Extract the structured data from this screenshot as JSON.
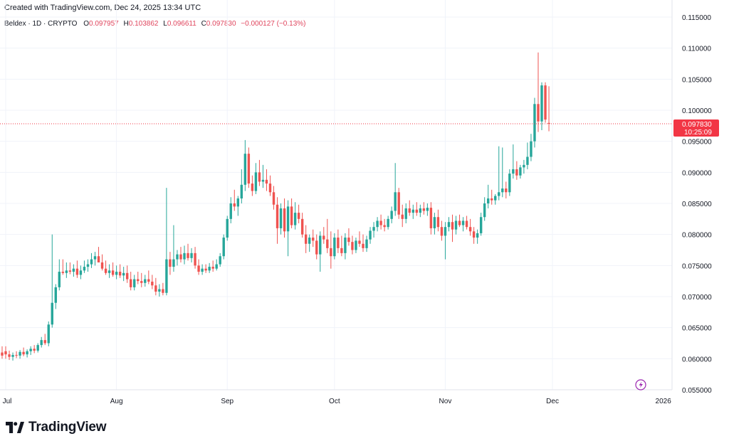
{
  "header": {
    "created_text": "Created with TradingView.com, Dec 24, 2025 13:34 UTC"
  },
  "symbol": {
    "title": "Beldex · 1D · CRYPTO",
    "open_label": "O",
    "open": "0.097957",
    "high_label": "H",
    "high": "0.103862",
    "low_label": "L",
    "low": "0.096611",
    "close_label": "C",
    "close": "0.097830",
    "change": "−0.000127 (−0.13%)"
  },
  "price_tag": {
    "price": "0.097830",
    "countdown": "10:25:09",
    "color": "#f23645"
  },
  "footer": {
    "brand": "TradingView",
    "logo_icon": "tradingview-logo-icon"
  },
  "colors": {
    "up": "#26a69a",
    "down": "#ef5350",
    "grid": "#f0f3fa",
    "text": "#131722"
  },
  "chart_data": {
    "type": "candlestick",
    "ylim": [
      0.055,
      0.115
    ],
    "y_ticks": [
      "0.115000",
      "0.110000",
      "0.105000",
      "0.100000",
      "0.095000",
      "0.090000",
      "0.085000",
      "0.080000",
      "0.075000",
      "0.070000",
      "0.065000",
      "0.060000",
      "0.055000"
    ],
    "x_ticks": [
      {
        "label": "Jul",
        "day": 0
      },
      {
        "label": "Aug",
        "day": 31
      },
      {
        "label": "Sep",
        "day": 62
      },
      {
        "label": "Oct",
        "day": 92
      },
      {
        "label": "Nov",
        "day": 123
      },
      {
        "label": "Dec",
        "day": 153
      },
      {
        "label": "2026",
        "day": 184
      }
    ],
    "candles": [
      {
        "day": -2,
        "o": 0.0625,
        "h": 0.063,
        "l": 0.0605,
        "c": 0.061
      },
      {
        "day": -1,
        "o": 0.061,
        "h": 0.062,
        "l": 0.06,
        "c": 0.0605
      },
      {
        "day": 0,
        "o": 0.0612,
        "h": 0.062,
        "l": 0.06,
        "c": 0.0607
      },
      {
        "day": 1,
        "o": 0.0607,
        "h": 0.0613,
        "l": 0.0598,
        "c": 0.0603
      },
      {
        "day": 2,
        "o": 0.0603,
        "h": 0.061,
        "l": 0.0597,
        "c": 0.0606
      },
      {
        "day": 3,
        "o": 0.0606,
        "h": 0.0612,
        "l": 0.0601,
        "c": 0.0605
      },
      {
        "day": 4,
        "o": 0.0605,
        "h": 0.0614,
        "l": 0.06,
        "c": 0.0611
      },
      {
        "day": 5,
        "o": 0.0611,
        "h": 0.0618,
        "l": 0.0604,
        "c": 0.0607
      },
      {
        "day": 6,
        "o": 0.0607,
        "h": 0.0615,
        "l": 0.0602,
        "c": 0.0612
      },
      {
        "day": 7,
        "o": 0.0612,
        "h": 0.062,
        "l": 0.0606,
        "c": 0.0616
      },
      {
        "day": 8,
        "o": 0.0616,
        "h": 0.0622,
        "l": 0.0609,
        "c": 0.0613
      },
      {
        "day": 9,
        "o": 0.0613,
        "h": 0.0625,
        "l": 0.061,
        "c": 0.0622
      },
      {
        "day": 10,
        "o": 0.0622,
        "h": 0.0635,
        "l": 0.0618,
        "c": 0.063
      },
      {
        "day": 11,
        "o": 0.063,
        "h": 0.064,
        "l": 0.0622,
        "c": 0.0625
      },
      {
        "day": 12,
        "o": 0.0625,
        "h": 0.066,
        "l": 0.062,
        "c": 0.0655
      },
      {
        "day": 13,
        "o": 0.0655,
        "h": 0.08,
        "l": 0.065,
        "c": 0.069
      },
      {
        "day": 14,
        "o": 0.069,
        "h": 0.072,
        "l": 0.068,
        "c": 0.0715
      },
      {
        "day": 15,
        "o": 0.0715,
        "h": 0.076,
        "l": 0.071,
        "c": 0.074
      },
      {
        "day": 16,
        "o": 0.074,
        "h": 0.076,
        "l": 0.0735,
        "c": 0.0738
      },
      {
        "day": 17,
        "o": 0.0738,
        "h": 0.0755,
        "l": 0.073,
        "c": 0.0742
      },
      {
        "day": 18,
        "o": 0.0742,
        "h": 0.0755,
        "l": 0.0736,
        "c": 0.074
      },
      {
        "day": 19,
        "o": 0.074,
        "h": 0.0752,
        "l": 0.0732,
        "c": 0.0745
      },
      {
        "day": 20,
        "o": 0.0745,
        "h": 0.0758,
        "l": 0.073,
        "c": 0.0735
      },
      {
        "day": 21,
        "o": 0.0735,
        "h": 0.075,
        "l": 0.0728,
        "c": 0.0742
      },
      {
        "day": 22,
        "o": 0.0742,
        "h": 0.0758,
        "l": 0.0738,
        "c": 0.0748
      },
      {
        "day": 23,
        "o": 0.0748,
        "h": 0.076,
        "l": 0.074,
        "c": 0.0752
      },
      {
        "day": 24,
        "o": 0.0752,
        "h": 0.077,
        "l": 0.0746,
        "c": 0.076
      },
      {
        "day": 25,
        "o": 0.076,
        "h": 0.0772,
        "l": 0.075,
        "c": 0.0765
      },
      {
        "day": 26,
        "o": 0.0765,
        "h": 0.078,
        "l": 0.0758,
        "c": 0.0755
      },
      {
        "day": 27,
        "o": 0.0755,
        "h": 0.0768,
        "l": 0.0742,
        "c": 0.0745
      },
      {
        "day": 28,
        "o": 0.0745,
        "h": 0.0758,
        "l": 0.0735,
        "c": 0.0738
      },
      {
        "day": 29,
        "o": 0.0738,
        "h": 0.0752,
        "l": 0.073,
        "c": 0.0742
      },
      {
        "day": 30,
        "o": 0.0742,
        "h": 0.0755,
        "l": 0.0732,
        "c": 0.0735
      },
      {
        "day": 31,
        "o": 0.0735,
        "h": 0.075,
        "l": 0.0728,
        "c": 0.074
      },
      {
        "day": 32,
        "o": 0.074,
        "h": 0.0752,
        "l": 0.073,
        "c": 0.0734
      },
      {
        "day": 33,
        "o": 0.0734,
        "h": 0.0748,
        "l": 0.0725,
        "c": 0.0738
      },
      {
        "day": 34,
        "o": 0.0738,
        "h": 0.075,
        "l": 0.0722,
        "c": 0.0728
      },
      {
        "day": 35,
        "o": 0.0728,
        "h": 0.074,
        "l": 0.071,
        "c": 0.0715
      },
      {
        "day": 36,
        "o": 0.0715,
        "h": 0.0735,
        "l": 0.071,
        "c": 0.0728
      },
      {
        "day": 37,
        "o": 0.0728,
        "h": 0.074,
        "l": 0.072,
        "c": 0.0725
      },
      {
        "day": 38,
        "o": 0.0725,
        "h": 0.0738,
        "l": 0.0715,
        "c": 0.0722
      },
      {
        "day": 39,
        "o": 0.0722,
        "h": 0.0735,
        "l": 0.0716,
        "c": 0.0728
      },
      {
        "day": 40,
        "o": 0.0728,
        "h": 0.0742,
        "l": 0.072,
        "c": 0.0724
      },
      {
        "day": 41,
        "o": 0.0724,
        "h": 0.0735,
        "l": 0.0712,
        "c": 0.0718
      },
      {
        "day": 42,
        "o": 0.0718,
        "h": 0.073,
        "l": 0.0702,
        "c": 0.0708
      },
      {
        "day": 43,
        "o": 0.0708,
        "h": 0.072,
        "l": 0.07,
        "c": 0.0712
      },
      {
        "day": 44,
        "o": 0.0712,
        "h": 0.0722,
        "l": 0.0702,
        "c": 0.0706
      },
      {
        "day": 45,
        "o": 0.0706,
        "h": 0.0875,
        "l": 0.0702,
        "c": 0.076
      },
      {
        "day": 46,
        "o": 0.076,
        "h": 0.0772,
        "l": 0.0735,
        "c": 0.0748
      },
      {
        "day": 47,
        "o": 0.0748,
        "h": 0.0815,
        "l": 0.074,
        "c": 0.076
      },
      {
        "day": 48,
        "o": 0.076,
        "h": 0.0775,
        "l": 0.075,
        "c": 0.0768
      },
      {
        "day": 49,
        "o": 0.0768,
        "h": 0.078,
        "l": 0.0755,
        "c": 0.076
      },
      {
        "day": 50,
        "o": 0.076,
        "h": 0.0782,
        "l": 0.0752,
        "c": 0.077
      },
      {
        "day": 51,
        "o": 0.077,
        "h": 0.0785,
        "l": 0.0758,
        "c": 0.0762
      },
      {
        "day": 52,
        "o": 0.0762,
        "h": 0.0778,
        "l": 0.0755,
        "c": 0.077
      },
      {
        "day": 53,
        "o": 0.077,
        "h": 0.078,
        "l": 0.0745,
        "c": 0.075
      },
      {
        "day": 54,
        "o": 0.075,
        "h": 0.076,
        "l": 0.0735,
        "c": 0.074
      },
      {
        "day": 55,
        "o": 0.074,
        "h": 0.0752,
        "l": 0.0735,
        "c": 0.0745
      },
      {
        "day": 56,
        "o": 0.0745,
        "h": 0.0752,
        "l": 0.0738,
        "c": 0.0742
      },
      {
        "day": 57,
        "o": 0.0742,
        "h": 0.0754,
        "l": 0.0738,
        "c": 0.0748
      },
      {
        "day": 58,
        "o": 0.0748,
        "h": 0.0758,
        "l": 0.074,
        "c": 0.0745
      },
      {
        "day": 59,
        "o": 0.0745,
        "h": 0.076,
        "l": 0.0742,
        "c": 0.0752
      },
      {
        "day": 60,
        "o": 0.0752,
        "h": 0.077,
        "l": 0.0748,
        "c": 0.0765
      },
      {
        "day": 61,
        "o": 0.0765,
        "h": 0.08,
        "l": 0.076,
        "c": 0.0795
      },
      {
        "day": 62,
        "o": 0.0795,
        "h": 0.083,
        "l": 0.079,
        "c": 0.0825
      },
      {
        "day": 63,
        "o": 0.0825,
        "h": 0.086,
        "l": 0.0818,
        "c": 0.085
      },
      {
        "day": 64,
        "o": 0.085,
        "h": 0.0872,
        "l": 0.0838,
        "c": 0.0845
      },
      {
        "day": 65,
        "o": 0.0845,
        "h": 0.0862,
        "l": 0.083,
        "c": 0.0858
      },
      {
        "day": 66,
        "o": 0.0858,
        "h": 0.0905,
        "l": 0.085,
        "c": 0.088
      },
      {
        "day": 67,
        "o": 0.088,
        "h": 0.0952,
        "l": 0.087,
        "c": 0.093
      },
      {
        "day": 68,
        "o": 0.093,
        "h": 0.094,
        "l": 0.0875,
        "c": 0.0882
      },
      {
        "day": 69,
        "o": 0.0882,
        "h": 0.0895,
        "l": 0.0862,
        "c": 0.087
      },
      {
        "day": 70,
        "o": 0.087,
        "h": 0.0915,
        "l": 0.0865,
        "c": 0.09
      },
      {
        "day": 71,
        "o": 0.09,
        "h": 0.092,
        "l": 0.0878,
        "c": 0.0885
      },
      {
        "day": 72,
        "o": 0.0885,
        "h": 0.0912,
        "l": 0.0875,
        "c": 0.0888
      },
      {
        "day": 73,
        "o": 0.0888,
        "h": 0.0905,
        "l": 0.087,
        "c": 0.0882
      },
      {
        "day": 74,
        "o": 0.0882,
        "h": 0.0895,
        "l": 0.0862,
        "c": 0.0868
      },
      {
        "day": 75,
        "o": 0.0868,
        "h": 0.0878,
        "l": 0.084,
        "c": 0.0848
      },
      {
        "day": 76,
        "o": 0.0848,
        "h": 0.086,
        "l": 0.0785,
        "c": 0.081
      },
      {
        "day": 77,
        "o": 0.081,
        "h": 0.085,
        "l": 0.08,
        "c": 0.0842
      },
      {
        "day": 78,
        "o": 0.0842,
        "h": 0.0858,
        "l": 0.0795,
        "c": 0.0805
      },
      {
        "day": 79,
        "o": 0.0805,
        "h": 0.0855,
        "l": 0.0765,
        "c": 0.0845
      },
      {
        "day": 80,
        "o": 0.0845,
        "h": 0.0858,
        "l": 0.081,
        "c": 0.0815
      },
      {
        "day": 81,
        "o": 0.0815,
        "h": 0.0852,
        "l": 0.0808,
        "c": 0.0835
      },
      {
        "day": 82,
        "o": 0.0835,
        "h": 0.0848,
        "l": 0.0818,
        "c": 0.0825
      },
      {
        "day": 83,
        "o": 0.0825,
        "h": 0.0835,
        "l": 0.0795,
        "c": 0.08
      },
      {
        "day": 84,
        "o": 0.08,
        "h": 0.0815,
        "l": 0.077,
        "c": 0.0785
      },
      {
        "day": 85,
        "o": 0.0785,
        "h": 0.08,
        "l": 0.0772,
        "c": 0.0795
      },
      {
        "day": 86,
        "o": 0.0795,
        "h": 0.0808,
        "l": 0.078,
        "c": 0.079
      },
      {
        "day": 87,
        "o": 0.079,
        "h": 0.08,
        "l": 0.076,
        "c": 0.0768
      },
      {
        "day": 88,
        "o": 0.0768,
        "h": 0.0805,
        "l": 0.074,
        "c": 0.0798
      },
      {
        "day": 89,
        "o": 0.0798,
        "h": 0.0812,
        "l": 0.0785,
        "c": 0.0792
      },
      {
        "day": 90,
        "o": 0.0792,
        "h": 0.0825,
        "l": 0.077,
        "c": 0.0778
      },
      {
        "day": 91,
        "o": 0.0778,
        "h": 0.0805,
        "l": 0.0745,
        "c": 0.0765
      },
      {
        "day": 92,
        "o": 0.0765,
        "h": 0.0802,
        "l": 0.076,
        "c": 0.0795
      },
      {
        "day": 93,
        "o": 0.0795,
        "h": 0.0808,
        "l": 0.077,
        "c": 0.0778
      },
      {
        "day": 94,
        "o": 0.0778,
        "h": 0.0798,
        "l": 0.0765,
        "c": 0.077
      },
      {
        "day": 95,
        "o": 0.077,
        "h": 0.0802,
        "l": 0.076,
        "c": 0.0795
      },
      {
        "day": 96,
        "o": 0.0795,
        "h": 0.081,
        "l": 0.0782,
        "c": 0.0788
      },
      {
        "day": 97,
        "o": 0.0788,
        "h": 0.0798,
        "l": 0.0768,
        "c": 0.0775
      },
      {
        "day": 98,
        "o": 0.0775,
        "h": 0.0795,
        "l": 0.077,
        "c": 0.079
      },
      {
        "day": 99,
        "o": 0.079,
        "h": 0.0805,
        "l": 0.078,
        "c": 0.0785
      },
      {
        "day": 100,
        "o": 0.0785,
        "h": 0.08,
        "l": 0.0772,
        "c": 0.0778
      },
      {
        "day": 101,
        "o": 0.0778,
        "h": 0.0798,
        "l": 0.0772,
        "c": 0.0792
      },
      {
        "day": 102,
        "o": 0.0792,
        "h": 0.0812,
        "l": 0.0785,
        "c": 0.0806
      },
      {
        "day": 103,
        "o": 0.0806,
        "h": 0.082,
        "l": 0.0795,
        "c": 0.0812
      },
      {
        "day": 104,
        "o": 0.0812,
        "h": 0.0828,
        "l": 0.0805,
        "c": 0.0822
      },
      {
        "day": 105,
        "o": 0.0822,
        "h": 0.0832,
        "l": 0.0808,
        "c": 0.0815
      },
      {
        "day": 106,
        "o": 0.0815,
        "h": 0.0825,
        "l": 0.0805,
        "c": 0.0812
      },
      {
        "day": 107,
        "o": 0.0812,
        "h": 0.083,
        "l": 0.0808,
        "c": 0.0825
      },
      {
        "day": 108,
        "o": 0.0825,
        "h": 0.0845,
        "l": 0.0818,
        "c": 0.0838
      },
      {
        "day": 109,
        "o": 0.0838,
        "h": 0.0915,
        "l": 0.083,
        "c": 0.0868
      },
      {
        "day": 110,
        "o": 0.0868,
        "h": 0.0875,
        "l": 0.0825,
        "c": 0.0832
      },
      {
        "day": 111,
        "o": 0.0832,
        "h": 0.0848,
        "l": 0.0812,
        "c": 0.0825
      },
      {
        "day": 112,
        "o": 0.0825,
        "h": 0.085,
        "l": 0.0818,
        "c": 0.0842
      },
      {
        "day": 113,
        "o": 0.0842,
        "h": 0.0855,
        "l": 0.083,
        "c": 0.0835
      },
      {
        "day": 114,
        "o": 0.0835,
        "h": 0.0848,
        "l": 0.0825,
        "c": 0.084
      },
      {
        "day": 115,
        "o": 0.084,
        "h": 0.0852,
        "l": 0.083,
        "c": 0.0835
      },
      {
        "day": 116,
        "o": 0.0835,
        "h": 0.0848,
        "l": 0.0828,
        "c": 0.0842
      },
      {
        "day": 117,
        "o": 0.0842,
        "h": 0.0852,
        "l": 0.0832,
        "c": 0.0838
      },
      {
        "day": 118,
        "o": 0.0838,
        "h": 0.085,
        "l": 0.083,
        "c": 0.0843
      },
      {
        "day": 119,
        "o": 0.0843,
        "h": 0.0852,
        "l": 0.08,
        "c": 0.081
      },
      {
        "day": 120,
        "o": 0.081,
        "h": 0.0835,
        "l": 0.08,
        "c": 0.0828
      },
      {
        "day": 121,
        "o": 0.0828,
        "h": 0.084,
        "l": 0.0805,
        "c": 0.0812
      },
      {
        "day": 122,
        "o": 0.0812,
        "h": 0.0822,
        "l": 0.079,
        "c": 0.0798
      },
      {
        "day": 123,
        "o": 0.0798,
        "h": 0.082,
        "l": 0.076,
        "c": 0.0812
      },
      {
        "day": 124,
        "o": 0.0812,
        "h": 0.0828,
        "l": 0.0805,
        "c": 0.082
      },
      {
        "day": 125,
        "o": 0.082,
        "h": 0.0832,
        "l": 0.0788,
        "c": 0.0808
      },
      {
        "day": 126,
        "o": 0.0808,
        "h": 0.083,
        "l": 0.08,
        "c": 0.0822
      },
      {
        "day": 127,
        "o": 0.0822,
        "h": 0.0832,
        "l": 0.0812,
        "c": 0.0815
      },
      {
        "day": 128,
        "o": 0.0815,
        "h": 0.0828,
        "l": 0.0805,
        "c": 0.0822
      },
      {
        "day": 129,
        "o": 0.0822,
        "h": 0.083,
        "l": 0.0808,
        "c": 0.0812
      },
      {
        "day": 130,
        "o": 0.0812,
        "h": 0.0825,
        "l": 0.0798,
        "c": 0.0805
      },
      {
        "day": 131,
        "o": 0.0805,
        "h": 0.0812,
        "l": 0.0785,
        "c": 0.0795
      },
      {
        "day": 132,
        "o": 0.0795,
        "h": 0.0808,
        "l": 0.0785,
        "c": 0.0802
      },
      {
        "day": 133,
        "o": 0.0802,
        "h": 0.0835,
        "l": 0.0798,
        "c": 0.0828
      },
      {
        "day": 134,
        "o": 0.0828,
        "h": 0.086,
        "l": 0.0822,
        "c": 0.085
      },
      {
        "day": 135,
        "o": 0.085,
        "h": 0.088,
        "l": 0.0842,
        "c": 0.0858
      },
      {
        "day": 136,
        "o": 0.0858,
        "h": 0.0872,
        "l": 0.0848,
        "c": 0.0855
      },
      {
        "day": 137,
        "o": 0.0855,
        "h": 0.0865,
        "l": 0.0848,
        "c": 0.0862
      },
      {
        "day": 138,
        "o": 0.0862,
        "h": 0.0942,
        "l": 0.0855,
        "c": 0.0868
      },
      {
        "day": 139,
        "o": 0.0868,
        "h": 0.094,
        "l": 0.086,
        "c": 0.0874
      },
      {
        "day": 140,
        "o": 0.0874,
        "h": 0.0885,
        "l": 0.0858,
        "c": 0.0868
      },
      {
        "day": 141,
        "o": 0.0868,
        "h": 0.0905,
        "l": 0.0862,
        "c": 0.0898
      },
      {
        "day": 142,
        "o": 0.0898,
        "h": 0.0945,
        "l": 0.089,
        "c": 0.0905
      },
      {
        "day": 143,
        "o": 0.0905,
        "h": 0.0918,
        "l": 0.0888,
        "c": 0.0895
      },
      {
        "day": 144,
        "o": 0.0895,
        "h": 0.0912,
        "l": 0.089,
        "c": 0.0908
      },
      {
        "day": 145,
        "o": 0.0908,
        "h": 0.092,
        "l": 0.0898,
        "c": 0.0912
      },
      {
        "day": 146,
        "o": 0.0912,
        "h": 0.0948,
        "l": 0.0905,
        "c": 0.0925
      },
      {
        "day": 147,
        "o": 0.0925,
        "h": 0.0962,
        "l": 0.0918,
        "c": 0.095
      },
      {
        "day": 148,
        "o": 0.095,
        "h": 0.102,
        "l": 0.094,
        "c": 0.101
      },
      {
        "day": 149,
        "o": 0.101,
        "h": 0.1093,
        "l": 0.0965,
        "c": 0.0982
      },
      {
        "day": 150,
        "o": 0.0982,
        "h": 0.1045,
        "l": 0.0968,
        "c": 0.104
      },
      {
        "day": 151,
        "o": 0.104,
        "h": 0.1045,
        "l": 0.098,
        "c": 0.0985
      },
      {
        "day": 152,
        "o": 0.097957,
        "h": 0.103862,
        "l": 0.096611,
        "c": 0.09783
      }
    ],
    "last_price": 0.09783
  }
}
